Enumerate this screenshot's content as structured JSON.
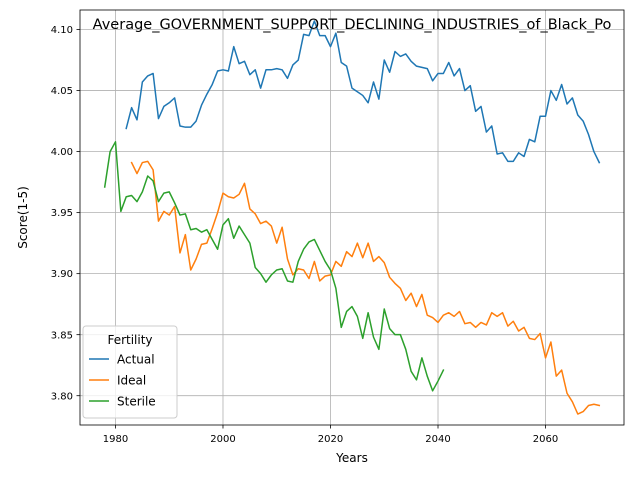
{
  "chart_data": {
    "type": "line",
    "title": "Average_GOVERNMENT_SUPPORT_DECLINING_INDUSTRIES_of_Black_Po",
    "xlabel": "Years",
    "ylabel": "Score(1-5)",
    "xlim": [
      1973.4,
      2074.6
    ],
    "ylim": [
      3.776,
      4.116
    ],
    "x_ticks": [
      1980,
      2000,
      2020,
      2040,
      2060
    ],
    "y_ticks": [
      3.8,
      3.85,
      3.9,
      3.95,
      4.0,
      4.05,
      4.1
    ],
    "x_tick_labels": [
      "1980",
      "2000",
      "2020",
      "2040",
      "2060"
    ],
    "y_tick_labels": [
      "3.80",
      "3.85",
      "3.90",
      "3.95",
      "4.00",
      "4.05",
      "4.10"
    ],
    "grid": true,
    "legend": {
      "title": "Fertility",
      "placement": "lower-left"
    },
    "series": [
      {
        "name": "Actual",
        "color": "#1f77b4",
        "x": [
          1982,
          1983,
          1984,
          1985,
          1986,
          1987,
          1988,
          1989,
          1990,
          1991,
          1992,
          1993,
          1994,
          1995,
          1996,
          1997,
          1998,
          1999,
          2000,
          2001,
          2002,
          2003,
          2004,
          2005,
          2006,
          2007,
          2008,
          2009,
          2010,
          2011,
          2012,
          2013,
          2014,
          2015,
          2016,
          2017,
          2018,
          2019,
          2020,
          2021,
          2022,
          2023,
          2024,
          2025,
          2026,
          2027,
          2028,
          2029,
          2030,
          2031,
          2032,
          2033,
          2034,
          2035,
          2036,
          2037,
          2038,
          2039,
          2040,
          2041,
          2042,
          2043,
          2044,
          2045,
          2046,
          2047,
          2048,
          2049,
          2050,
          2051,
          2052,
          2053,
          2054,
          2055,
          2056,
          2057,
          2058,
          2059,
          2060,
          2061,
          2062,
          2063,
          2064,
          2065,
          2066,
          2067,
          2068,
          2069,
          2070
        ],
        "values": [
          4.019,
          4.036,
          4.026,
          4.057,
          4.062,
          4.064,
          4.027,
          4.037,
          4.04,
          4.044,
          4.021,
          4.02,
          4.02,
          4.025,
          4.038,
          4.047,
          4.055,
          4.066,
          4.067,
          4.066,
          4.086,
          4.072,
          4.074,
          4.063,
          4.067,
          4.052,
          4.067,
          4.067,
          4.068,
          4.067,
          4.06,
          4.071,
          4.075,
          4.096,
          4.095,
          4.107,
          4.095,
          4.095,
          4.086,
          4.097,
          4.073,
          4.07,
          4.052,
          4.049,
          4.046,
          4.04,
          4.057,
          4.043,
          4.075,
          4.065,
          4.082,
          4.078,
          4.08,
          4.074,
          4.07,
          4.069,
          4.068,
          4.058,
          4.064,
          4.064,
          4.073,
          4.062,
          4.068,
          4.05,
          4.054,
          4.033,
          4.037,
          4.016,
          4.021,
          3.998,
          3.999,
          3.992,
          3.992,
          3.999,
          3.996,
          4.01,
          4.008,
          4.029,
          4.029,
          4.05,
          4.042,
          4.055,
          4.039,
          4.044,
          4.03,
          4.025,
          4.014,
          4.0,
          3.991
        ]
      },
      {
        "name": "Ideal",
        "color": "#ff7f0e",
        "x": [
          1983,
          1984,
          1985,
          1986,
          1987,
          1988,
          1989,
          1990,
          1991,
          1992,
          1993,
          1994,
          1995,
          1996,
          1997,
          1998,
          1999,
          2000,
          2001,
          2002,
          2003,
          2004,
          2005,
          2006,
          2007,
          2008,
          2009,
          2010,
          2011,
          2012,
          2013,
          2014,
          2015,
          2016,
          2017,
          2018,
          2019,
          2020,
          2021,
          2022,
          2023,
          2024,
          2025,
          2026,
          2027,
          2028,
          2029,
          2030,
          2031,
          2032,
          2033,
          2034,
          2035,
          2036,
          2037,
          2038,
          2039,
          2040,
          2041,
          2042,
          2043,
          2044,
          2045,
          2046,
          2047,
          2048,
          2049,
          2050,
          2051,
          2052,
          2053,
          2054,
          2055,
          2056,
          2057,
          2058,
          2059,
          2060,
          2061,
          2062,
          2063,
          2064,
          2065,
          2066,
          2067,
          2068,
          2069,
          2070
        ],
        "values": [
          3.991,
          3.982,
          3.991,
          3.992,
          3.985,
          3.943,
          3.951,
          3.948,
          3.955,
          3.917,
          3.932,
          3.903,
          3.912,
          3.924,
          3.925,
          3.937,
          3.95,
          3.966,
          3.963,
          3.962,
          3.965,
          3.974,
          3.953,
          3.949,
          3.941,
          3.943,
          3.939,
          3.925,
          3.938,
          3.912,
          3.899,
          3.904,
          3.903,
          3.896,
          3.91,
          3.894,
          3.898,
          3.899,
          3.91,
          3.906,
          3.918,
          3.914,
          3.925,
          3.913,
          3.925,
          3.91,
          3.914,
          3.909,
          3.897,
          3.892,
          3.888,
          3.878,
          3.884,
          3.873,
          3.883,
          3.866,
          3.864,
          3.86,
          3.866,
          3.868,
          3.865,
          3.869,
          3.859,
          3.86,
          3.856,
          3.86,
          3.858,
          3.868,
          3.865,
          3.868,
          3.857,
          3.861,
          3.853,
          3.856,
          3.847,
          3.846,
          3.851,
          3.831,
          3.844,
          3.816,
          3.821,
          3.802,
          3.795,
          3.785,
          3.787,
          3.792,
          3.793,
          3.792
        ]
      },
      {
        "name": "Sterile",
        "color": "#2ca02c",
        "x": [
          1978,
          1979,
          1980,
          1981,
          1982,
          1983,
          1984,
          1985,
          1986,
          1987,
          1988,
          1989,
          1990,
          1991,
          1992,
          1993,
          1994,
          1995,
          1996,
          1997,
          1998,
          1999,
          2000,
          2001,
          2002,
          2003,
          2004,
          2005,
          2006,
          2007,
          2008,
          2009,
          2010,
          2011,
          2012,
          2013,
          2014,
          2015,
          2016,
          2017,
          2018,
          2019,
          2020,
          2021,
          2022,
          2023,
          2024,
          2025,
          2026,
          2027,
          2028,
          2029,
          2030,
          2031,
          2032,
          2033,
          2034,
          2035,
          2036,
          2037,
          2038,
          2039,
          2040,
          2041
        ],
        "values": [
          3.971,
          4.0,
          4.008,
          3.951,
          3.963,
          3.964,
          3.959,
          3.967,
          3.98,
          3.976,
          3.959,
          3.966,
          3.967,
          3.958,
          3.948,
          3.949,
          3.936,
          3.937,
          3.934,
          3.936,
          3.928,
          3.92,
          3.94,
          3.945,
          3.929,
          3.939,
          3.932,
          3.925,
          3.905,
          3.9,
          3.893,
          3.899,
          3.903,
          3.904,
          3.894,
          3.893,
          3.91,
          3.92,
          3.926,
          3.928,
          3.919,
          3.91,
          3.903,
          3.888,
          3.856,
          3.869,
          3.873,
          3.865,
          3.847,
          3.868,
          3.848,
          3.838,
          3.871,
          3.855,
          3.85,
          3.85,
          3.838,
          3.82,
          3.813,
          3.831,
          3.816,
          3.804,
          3.812,
          3.821
        ]
      }
    ]
  }
}
